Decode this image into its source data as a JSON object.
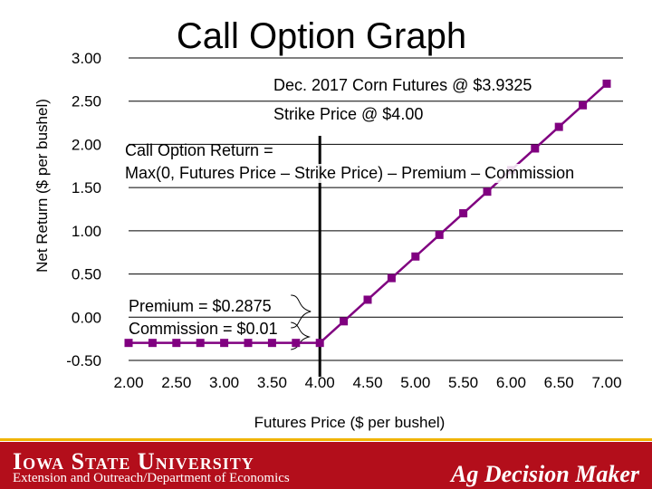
{
  "slide": {
    "title": "Call Option Graph"
  },
  "annotations": {
    "futures": "Dec. 2017 Corn Futures @ $3.9325",
    "strike": "Strike Price @ $4.00",
    "formula_line1": "Call Option Return =",
    "formula_line2": "Max(0, Futures Price – Strike Price) – Premium – Commission",
    "premium": "Premium = $0.2875",
    "commission": "Commission = $0.01"
  },
  "footer": {
    "university": "Iowa State University",
    "department": "Extension and Outreach/Department of Economics",
    "brand": "Ag Decision Maker"
  },
  "colors": {
    "series": "#800080",
    "footer_bg": "#b30e1b",
    "footer_accent": "#f0b400"
  },
  "chart_data": {
    "type": "line",
    "xlabel": "Futures Price ($ per bushel)",
    "ylabel": "Net Return ($ per bushel)",
    "xlim": [
      2.0,
      7.0
    ],
    "ylim": [
      -0.5,
      3.0
    ],
    "x_ticks": [
      "2.00",
      "2.50",
      "3.00",
      "3.50",
      "4.00",
      "4.50",
      "5.00",
      "5.50",
      "6.00",
      "6.50",
      "7.00"
    ],
    "y_ticks": [
      "3.00",
      "2.50",
      "2.00",
      "1.50",
      "1.00",
      "0.50",
      "0.00",
      "-0.50"
    ],
    "grid": "horizontal",
    "strike_line_x": 4.0,
    "series": [
      {
        "x": [
          2.0,
          2.25,
          2.5,
          2.75,
          3.0,
          3.25,
          3.5,
          3.75,
          4.0,
          4.25,
          4.5,
          4.75,
          5.0,
          5.25,
          5.5,
          5.75,
          6.0,
          6.25,
          6.5,
          6.75,
          7.0
        ],
        "values": [
          -0.2975,
          -0.2975,
          -0.2975,
          -0.2975,
          -0.2975,
          -0.2975,
          -0.2975,
          -0.2975,
          -0.2975,
          -0.0475,
          0.2025,
          0.4525,
          0.7025,
          0.9525,
          1.2025,
          1.4525,
          1.7025,
          1.9525,
          2.2025,
          2.4525,
          2.7025
        ]
      }
    ]
  }
}
